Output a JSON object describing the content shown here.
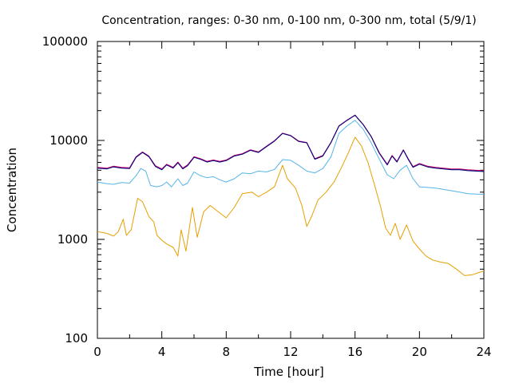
{
  "chart_data": {
    "type": "line",
    "title": "Concentration, ranges: 0-30 nm, 0-100 nm, 0-300 nm, total (5/9/1)",
    "xlabel": "Time [hour]",
    "ylabel": "Concentration",
    "xlim": [
      0,
      24
    ],
    "ylim": [
      100,
      100000
    ],
    "yscale": "log",
    "grid": false,
    "legend": "none",
    "x_ticks": [
      0,
      4,
      8,
      12,
      16,
      20,
      24
    ],
    "x_tick_labels": [
      "0",
      "4",
      "8",
      "12",
      "16",
      "20",
      "24"
    ],
    "y_ticks": [
      100,
      1000,
      10000,
      100000
    ],
    "y_tick_labels": [
      "100",
      "1000",
      "10000",
      "100000"
    ],
    "series": [
      {
        "color": "#e69f00",
        "points": [
          [
            0,
            1200
          ],
          [
            0.6,
            1150
          ],
          [
            1,
            1080
          ],
          [
            1.3,
            1200
          ],
          [
            1.6,
            1600
          ],
          [
            1.8,
            1100
          ],
          [
            2.1,
            1250
          ],
          [
            2.5,
            2600
          ],
          [
            2.8,
            2400
          ],
          [
            3.2,
            1700
          ],
          [
            3.5,
            1500
          ],
          [
            3.7,
            1100
          ],
          [
            4,
            980
          ],
          [
            4.3,
            900
          ],
          [
            4.7,
            830
          ],
          [
            5,
            680
          ],
          [
            5.2,
            1250
          ],
          [
            5.5,
            760
          ],
          [
            5.9,
            2100
          ],
          [
            6.2,
            1050
          ],
          [
            6.6,
            1900
          ],
          [
            7,
            2200
          ],
          [
            7.5,
            1900
          ],
          [
            8,
            1650
          ],
          [
            8.5,
            2100
          ],
          [
            9,
            2900
          ],
          [
            9.6,
            3000
          ],
          [
            10,
            2700
          ],
          [
            10.5,
            3000
          ],
          [
            11,
            3400
          ],
          [
            11.5,
            5600
          ],
          [
            11.8,
            4100
          ],
          [
            12.3,
            3300
          ],
          [
            12.7,
            2200
          ],
          [
            13,
            1350
          ],
          [
            13.3,
            1700
          ],
          [
            13.7,
            2500
          ],
          [
            14.2,
            3000
          ],
          [
            14.7,
            3800
          ],
          [
            15.2,
            5500
          ],
          [
            15.6,
            7600
          ],
          [
            16,
            10800
          ],
          [
            16.4,
            8800
          ],
          [
            16.8,
            6000
          ],
          [
            17.2,
            3600
          ],
          [
            17.6,
            2100
          ],
          [
            17.9,
            1300
          ],
          [
            18.2,
            1100
          ],
          [
            18.5,
            1450
          ],
          [
            18.8,
            1000
          ],
          [
            19.2,
            1400
          ],
          [
            19.6,
            960
          ],
          [
            20,
            800
          ],
          [
            20.4,
            680
          ],
          [
            20.8,
            620
          ],
          [
            21.3,
            590
          ],
          [
            21.8,
            570
          ],
          [
            22.3,
            500
          ],
          [
            22.8,
            430
          ],
          [
            23.3,
            440
          ],
          [
            24,
            480
          ]
        ]
      },
      {
        "color": "#56b4e9",
        "points": [
          [
            0,
            3800
          ],
          [
            0.6,
            3650
          ],
          [
            1,
            3600
          ],
          [
            1.5,
            3750
          ],
          [
            2,
            3700
          ],
          [
            2.4,
            4400
          ],
          [
            2.7,
            5200
          ],
          [
            3,
            4900
          ],
          [
            3.3,
            3500
          ],
          [
            3.7,
            3400
          ],
          [
            4,
            3500
          ],
          [
            4.3,
            3800
          ],
          [
            4.6,
            3400
          ],
          [
            5,
            4100
          ],
          [
            5.3,
            3500
          ],
          [
            5.6,
            3700
          ],
          [
            6,
            4800
          ],
          [
            6.4,
            4400
          ],
          [
            6.8,
            4200
          ],
          [
            7.2,
            4300
          ],
          [
            7.6,
            4000
          ],
          [
            8,
            3800
          ],
          [
            8.5,
            4100
          ],
          [
            9,
            4700
          ],
          [
            9.5,
            4600
          ],
          [
            10,
            4900
          ],
          [
            10.5,
            4800
          ],
          [
            11,
            5100
          ],
          [
            11.5,
            6400
          ],
          [
            12,
            6300
          ],
          [
            12.5,
            5600
          ],
          [
            13,
            4900
          ],
          [
            13.5,
            4700
          ],
          [
            14,
            5200
          ],
          [
            14.5,
            6800
          ],
          [
            15,
            11800
          ],
          [
            15.5,
            14000
          ],
          [
            16,
            16000
          ],
          [
            16.5,
            13000
          ],
          [
            17,
            9500
          ],
          [
            17.5,
            6500
          ],
          [
            18,
            4500
          ],
          [
            18.4,
            4100
          ],
          [
            18.8,
            5000
          ],
          [
            19.2,
            5600
          ],
          [
            19.6,
            4100
          ],
          [
            20,
            3400
          ],
          [
            20.5,
            3350
          ],
          [
            21,
            3300
          ],
          [
            21.5,
            3200
          ],
          [
            22,
            3100
          ],
          [
            22.5,
            3000
          ],
          [
            23,
            2900
          ],
          [
            24,
            2850
          ]
        ]
      },
      {
        "color": "#009e73",
        "points": [
          [
            0,
            5300
          ],
          [
            0.6,
            5200
          ],
          [
            1,
            5450
          ],
          [
            1.5,
            5300
          ],
          [
            2,
            5250
          ],
          [
            2.4,
            6800
          ],
          [
            2.8,
            7600
          ],
          [
            3.2,
            6900
          ],
          [
            3.6,
            5500
          ],
          [
            4,
            5100
          ],
          [
            4.3,
            5700
          ],
          [
            4.7,
            5300
          ],
          [
            5,
            6000
          ],
          [
            5.3,
            5200
          ],
          [
            5.6,
            5600
          ],
          [
            6,
            6800
          ],
          [
            6.4,
            6500
          ],
          [
            6.8,
            6100
          ],
          [
            7.2,
            6300
          ],
          [
            7.6,
            6100
          ],
          [
            8,
            6300
          ],
          [
            8.5,
            7000
          ],
          [
            9,
            7300
          ],
          [
            9.5,
            8000
          ],
          [
            10,
            7600
          ],
          [
            10.5,
            8700
          ],
          [
            11,
            9900
          ],
          [
            11.5,
            11800
          ],
          [
            12,
            11200
          ],
          [
            12.5,
            9800
          ],
          [
            13,
            9500
          ],
          [
            13.5,
            6500
          ],
          [
            14,
            7000
          ],
          [
            14.5,
            9500
          ],
          [
            15,
            14000
          ],
          [
            15.5,
            16000
          ],
          [
            16,
            18000
          ],
          [
            16.5,
            14500
          ],
          [
            17,
            11000
          ],
          [
            17.5,
            7500
          ],
          [
            18,
            5700
          ],
          [
            18.3,
            7000
          ],
          [
            18.6,
            6100
          ],
          [
            19,
            8000
          ],
          [
            19.3,
            6500
          ],
          [
            19.6,
            5400
          ],
          [
            20,
            5800
          ],
          [
            20.5,
            5450
          ],
          [
            21,
            5300
          ],
          [
            21.5,
            5200
          ],
          [
            22,
            5100
          ],
          [
            22.5,
            5100
          ],
          [
            23,
            5000
          ],
          [
            24,
            4900
          ]
        ]
      },
      {
        "color": "#cc0066",
        "points": [
          [
            0,
            5350
          ],
          [
            0.6,
            5250
          ],
          [
            1,
            5500
          ],
          [
            1.5,
            5350
          ],
          [
            2,
            5300
          ],
          [
            2.4,
            6850
          ],
          [
            2.8,
            7650
          ],
          [
            3.2,
            6950
          ],
          [
            3.6,
            5550
          ],
          [
            4,
            5150
          ],
          [
            4.3,
            5750
          ],
          [
            4.7,
            5350
          ],
          [
            5,
            6050
          ],
          [
            5.3,
            5250
          ],
          [
            5.6,
            5650
          ],
          [
            6,
            6850
          ],
          [
            6.4,
            6550
          ],
          [
            6.8,
            6150
          ],
          [
            7.2,
            6350
          ],
          [
            7.6,
            6150
          ],
          [
            8,
            6350
          ],
          [
            8.5,
            7050
          ],
          [
            9,
            7350
          ],
          [
            9.5,
            8050
          ],
          [
            10,
            7650
          ],
          [
            10.5,
            8750
          ],
          [
            11,
            9950
          ],
          [
            11.5,
            11850
          ],
          [
            12,
            11250
          ],
          [
            12.5,
            9850
          ],
          [
            13,
            9550
          ],
          [
            13.5,
            6550
          ],
          [
            14,
            7050
          ],
          [
            14.5,
            9550
          ],
          [
            15,
            14050
          ],
          [
            15.5,
            16050
          ],
          [
            16,
            18050
          ],
          [
            16.5,
            14550
          ],
          [
            17,
            11050
          ],
          [
            17.5,
            7550
          ],
          [
            18,
            5750
          ],
          [
            18.3,
            7050
          ],
          [
            18.6,
            6150
          ],
          [
            19,
            8050
          ],
          [
            19.3,
            6550
          ],
          [
            19.6,
            5450
          ],
          [
            20,
            5850
          ],
          [
            20.5,
            5500
          ],
          [
            21,
            5350
          ],
          [
            21.5,
            5250
          ],
          [
            22,
            5150
          ],
          [
            22.5,
            5150
          ],
          [
            23,
            5050
          ],
          [
            24,
            4950
          ]
        ]
      },
      {
        "color": "#000080",
        "points": [
          [
            0,
            5250
          ],
          [
            0.6,
            5150
          ],
          [
            1,
            5400
          ],
          [
            1.5,
            5250
          ],
          [
            2,
            5200
          ],
          [
            2.4,
            6750
          ],
          [
            2.8,
            7550
          ],
          [
            3.2,
            6850
          ],
          [
            3.6,
            5450
          ],
          [
            4,
            5050
          ],
          [
            4.3,
            5650
          ],
          [
            4.7,
            5250
          ],
          [
            5,
            5950
          ],
          [
            5.3,
            5150
          ],
          [
            5.6,
            5550
          ],
          [
            6,
            6750
          ],
          [
            6.4,
            6450
          ],
          [
            6.8,
            6050
          ],
          [
            7.2,
            6250
          ],
          [
            7.6,
            6050
          ],
          [
            8,
            6250
          ],
          [
            8.5,
            6950
          ],
          [
            9,
            7250
          ],
          [
            9.5,
            7950
          ],
          [
            10,
            7550
          ],
          [
            10.5,
            8650
          ],
          [
            11,
            9850
          ],
          [
            11.5,
            11750
          ],
          [
            12,
            11150
          ],
          [
            12.5,
            9750
          ],
          [
            13,
            9450
          ],
          [
            13.5,
            6450
          ],
          [
            14,
            6950
          ],
          [
            14.5,
            9450
          ],
          [
            15,
            13950
          ],
          [
            15.5,
            15950
          ],
          [
            16,
            17950
          ],
          [
            16.5,
            14450
          ],
          [
            17,
            10950
          ],
          [
            17.5,
            7450
          ],
          [
            18,
            5650
          ],
          [
            18.3,
            6950
          ],
          [
            18.6,
            6050
          ],
          [
            19,
            7950
          ],
          [
            19.3,
            6450
          ],
          [
            19.6,
            5350
          ],
          [
            20,
            5750
          ],
          [
            20.5,
            5400
          ],
          [
            21,
            5250
          ],
          [
            21.5,
            5150
          ],
          [
            22,
            5050
          ],
          [
            22.5,
            5050
          ],
          [
            23,
            4950
          ],
          [
            24,
            4850
          ]
        ]
      }
    ]
  }
}
